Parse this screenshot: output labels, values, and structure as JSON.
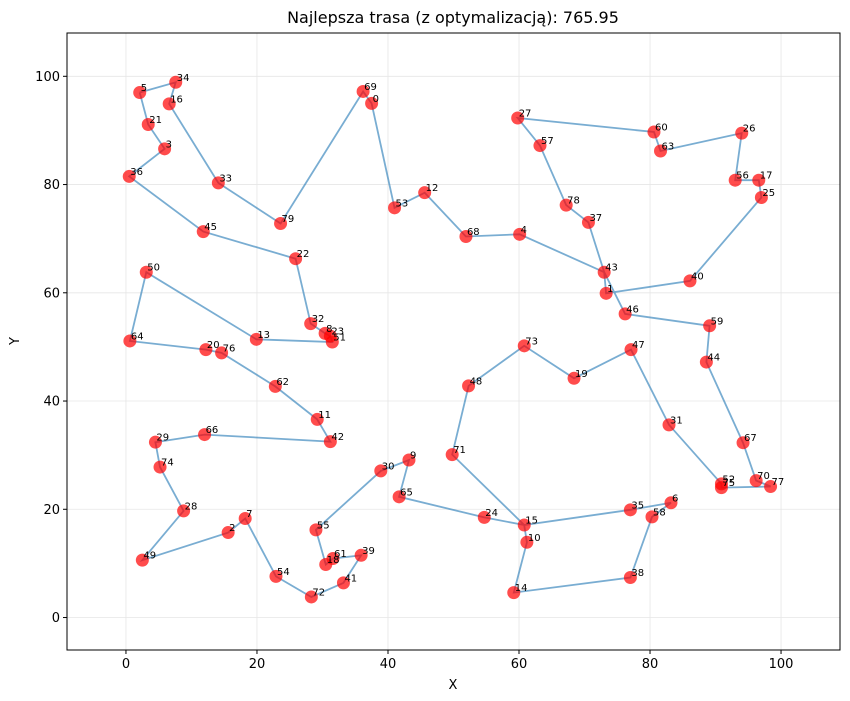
{
  "chart_data": {
    "type": "scatter",
    "title": "Najlepsza trasa (z optymalizacją): 765.95",
    "xlabel": "X",
    "ylabel": "Y",
    "xlim": [
      -9,
      109
    ],
    "ylim": [
      -6,
      108
    ],
    "xticks": [
      0,
      20,
      40,
      60,
      80,
      100
    ],
    "yticks": [
      0,
      20,
      40,
      60,
      80,
      100
    ],
    "grid": true,
    "colors": {
      "point": "#ff0000",
      "route": "#1f77b4"
    },
    "points": [
      {
        "id": "0",
        "x": 37.5,
        "y": 95.0
      },
      {
        "id": "1",
        "x": 73.3,
        "y": 59.9
      },
      {
        "id": "2",
        "x": 15.6,
        "y": 15.7
      },
      {
        "id": "3",
        "x": 5.9,
        "y": 86.6
      },
      {
        "id": "4",
        "x": 60.1,
        "y": 70.8
      },
      {
        "id": "5",
        "x": 2.1,
        "y": 97.0
      },
      {
        "id": "6",
        "x": 83.2,
        "y": 21.2
      },
      {
        "id": "7",
        "x": 18.2,
        "y": 18.3
      },
      {
        "id": "8",
        "x": 30.4,
        "y": 52.5
      },
      {
        "id": "9",
        "x": 43.2,
        "y": 29.1
      },
      {
        "id": "10",
        "x": 61.2,
        "y": 13.9
      },
      {
        "id": "11",
        "x": 29.2,
        "y": 36.6
      },
      {
        "id": "12",
        "x": 45.6,
        "y": 78.5
      },
      {
        "id": "13",
        "x": 19.9,
        "y": 51.4
      },
      {
        "id": "14",
        "x": 59.2,
        "y": 4.6
      },
      {
        "id": "15",
        "x": 60.8,
        "y": 17.1
      },
      {
        "id": "16",
        "x": 6.6,
        "y": 94.9
      },
      {
        "id": "17",
        "x": 96.6,
        "y": 80.8
      },
      {
        "id": "18",
        "x": 30.5,
        "y": 9.8
      },
      {
        "id": "19",
        "x": 68.4,
        "y": 44.2
      },
      {
        "id": "20",
        "x": 12.2,
        "y": 49.5
      },
      {
        "id": "21",
        "x": 3.4,
        "y": 91.1
      },
      {
        "id": "22",
        "x": 25.9,
        "y": 66.3
      },
      {
        "id": "23",
        "x": 31.2,
        "y": 52.0
      },
      {
        "id": "24",
        "x": 54.7,
        "y": 18.5
      },
      {
        "id": "25",
        "x": 97.0,
        "y": 77.6
      },
      {
        "id": "26",
        "x": 94.0,
        "y": 89.5
      },
      {
        "id": "27",
        "x": 59.8,
        "y": 92.3
      },
      {
        "id": "28",
        "x": 8.8,
        "y": 19.7
      },
      {
        "id": "29",
        "x": 4.5,
        "y": 32.4
      },
      {
        "id": "30",
        "x": 38.9,
        "y": 27.1
      },
      {
        "id": "31",
        "x": 82.9,
        "y": 35.6
      },
      {
        "id": "32",
        "x": 28.2,
        "y": 54.3
      },
      {
        "id": "33",
        "x": 14.1,
        "y": 80.3
      },
      {
        "id": "34",
        "x": 7.6,
        "y": 98.9
      },
      {
        "id": "35",
        "x": 77.0,
        "y": 19.9
      },
      {
        "id": "36",
        "x": 0.5,
        "y": 81.5
      },
      {
        "id": "37",
        "x": 70.6,
        "y": 73.0
      },
      {
        "id": "38",
        "x": 77.0,
        "y": 7.4
      },
      {
        "id": "39",
        "x": 35.9,
        "y": 11.5
      },
      {
        "id": "40",
        "x": 86.1,
        "y": 62.2
      },
      {
        "id": "41",
        "x": 33.2,
        "y": 6.4
      },
      {
        "id": "42",
        "x": 31.2,
        "y": 32.5
      },
      {
        "id": "43",
        "x": 73.0,
        "y": 63.8
      },
      {
        "id": "44",
        "x": 88.6,
        "y": 47.2
      },
      {
        "id": "45",
        "x": 11.8,
        "y": 71.3
      },
      {
        "id": "46",
        "x": 76.2,
        "y": 56.1
      },
      {
        "id": "47",
        "x": 77.1,
        "y": 49.5
      },
      {
        "id": "48",
        "x": 52.3,
        "y": 42.8
      },
      {
        "id": "49",
        "x": 2.5,
        "y": 10.6
      },
      {
        "id": "50",
        "x": 3.1,
        "y": 63.8
      },
      {
        "id": "51",
        "x": 31.5,
        "y": 50.9
      },
      {
        "id": "52",
        "x": 90.9,
        "y": 24.7
      },
      {
        "id": "53",
        "x": 41.0,
        "y": 75.7
      },
      {
        "id": "54",
        "x": 22.9,
        "y": 7.6
      },
      {
        "id": "55",
        "x": 29.0,
        "y": 16.2
      },
      {
        "id": "56",
        "x": 93.0,
        "y": 80.8
      },
      {
        "id": "57",
        "x": 63.2,
        "y": 87.2
      },
      {
        "id": "58",
        "x": 80.3,
        "y": 18.6
      },
      {
        "id": "59",
        "x": 89.1,
        "y": 53.9
      },
      {
        "id": "60",
        "x": 80.6,
        "y": 89.7
      },
      {
        "id": "61",
        "x": 31.6,
        "y": 10.9
      },
      {
        "id": "62",
        "x": 22.8,
        "y": 42.7
      },
      {
        "id": "63",
        "x": 81.6,
        "y": 86.2
      },
      {
        "id": "64",
        "x": 0.6,
        "y": 51.1
      },
      {
        "id": "65",
        "x": 41.7,
        "y": 22.3
      },
      {
        "id": "66",
        "x": 12.0,
        "y": 33.8
      },
      {
        "id": "67",
        "x": 94.2,
        "y": 32.3
      },
      {
        "id": "68",
        "x": 51.9,
        "y": 70.4
      },
      {
        "id": "69",
        "x": 36.2,
        "y": 97.2
      },
      {
        "id": "70",
        "x": 96.2,
        "y": 25.3
      },
      {
        "id": "71",
        "x": 49.8,
        "y": 30.1
      },
      {
        "id": "72",
        "x": 28.3,
        "y": 3.8
      },
      {
        "id": "73",
        "x": 60.8,
        "y": 50.2
      },
      {
        "id": "74",
        "x": 5.2,
        "y": 27.8
      },
      {
        "id": "75",
        "x": 90.9,
        "y": 24.0
      },
      {
        "id": "76",
        "x": 14.6,
        "y": 48.9
      },
      {
        "id": "77",
        "x": 98.4,
        "y": 24.2
      },
      {
        "id": "78",
        "x": 67.2,
        "y": 76.2
      },
      {
        "id": "79",
        "x": 23.6,
        "y": 72.8
      }
    ],
    "route": [
      "5",
      "34",
      "16",
      "33",
      "79",
      "69",
      "0",
      "53",
      "12",
      "68",
      "4",
      "43",
      "1",
      "40",
      "25",
      "17",
      "56",
      "26",
      "63",
      "60",
      "27",
      "57",
      "78",
      "37",
      "43",
      "46",
      "59",
      "44",
      "67",
      "70",
      "77",
      "75",
      "52",
      "31",
      "47",
      "19",
      "73",
      "48",
      "71",
      "15",
      "35",
      "6",
      "58",
      "38",
      "14",
      "10",
      "15",
      "24",
      "65",
      "9",
      "30",
      "55",
      "18",
      "61",
      "39",
      "41",
      "72",
      "54",
      "7",
      "2",
      "49",
      "28",
      "74",
      "29",
      "66",
      "42",
      "11",
      "62",
      "76",
      "20",
      "64",
      "50",
      "13",
      "51",
      "23",
      "8",
      "32",
      "22",
      "45",
      "36",
      "3",
      "21",
      "5"
    ]
  }
}
